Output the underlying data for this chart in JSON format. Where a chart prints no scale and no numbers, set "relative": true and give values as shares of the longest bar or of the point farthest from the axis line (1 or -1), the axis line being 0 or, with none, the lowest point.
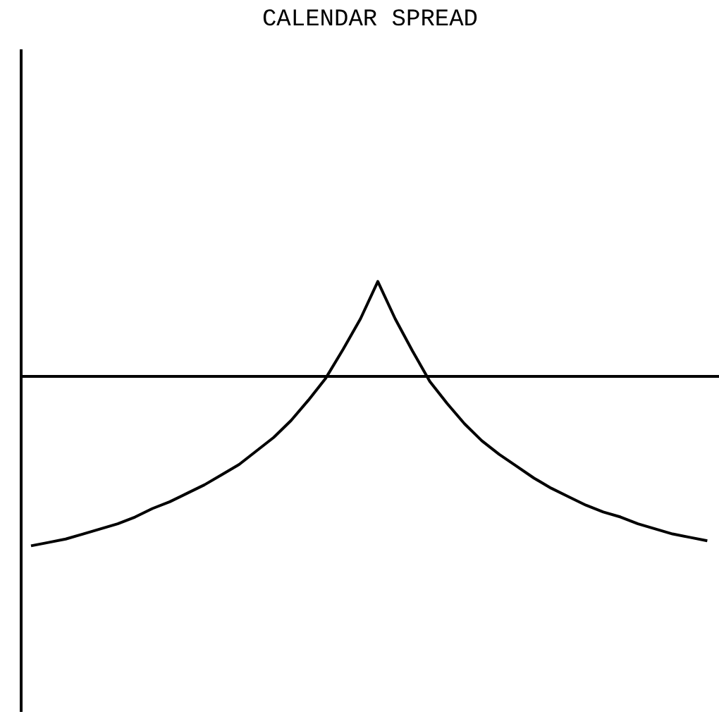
{
  "chart_data": {
    "type": "line",
    "title": "CALENDAR SPREAD",
    "relative": true,
    "categories": [
      null,
      null,
      null,
      null,
      null,
      null,
      null,
      null,
      null,
      null,
      null,
      null,
      null,
      null,
      null,
      null,
      null,
      null,
      null,
      null,
      null,
      null,
      null,
      null,
      null,
      null,
      null,
      null,
      null,
      null,
      null,
      null,
      null,
      null,
      null,
      null,
      null,
      null,
      null,
      null
    ],
    "series": [
      {
        "color": "#000000",
        "values": [
          -1.0,
          -0.98,
          -0.96,
          -0.93,
          -0.9,
          -0.87,
          -0.83,
          -0.78,
          -0.74,
          -0.69,
          -0.64,
          -0.58,
          -0.52,
          -0.44,
          -0.36,
          -0.26,
          -0.14,
          -0.01,
          0.16,
          0.34,
          0.56,
          0.34,
          0.15,
          -0.03,
          -0.16,
          -0.28,
          -0.38,
          -0.46,
          -0.53,
          -0.6,
          -0.66,
          -0.71,
          -0.76,
          -0.8,
          -0.83,
          -0.87,
          -0.9,
          -0.93,
          -0.95,
          -0.97
        ]
      }
    ],
    "marker": "none",
    "line_style": "solid"
  }
}
